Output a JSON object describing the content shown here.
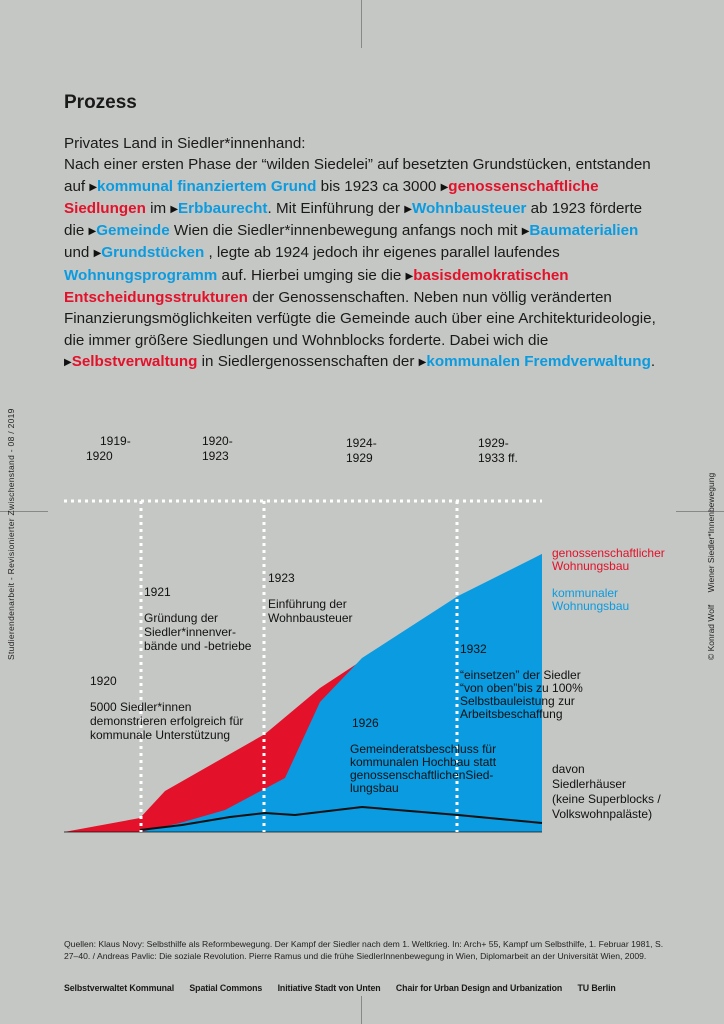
{
  "sidebar_left": "Studierendenarbeit -  Revisionierter Zwischenstand - 08 / 2019",
  "sidebar_right": {
    "credit": "© Konrad Wolf",
    "title": "Wiener Siedler*Innenbewegung"
  },
  "section_title": "Prozess",
  "text": {
    "line1": "Privates Land in Siedler*innenhand:",
    "p1": "Nach einer ersten Phase der “wilden Siedelei” auf besetzten Grundstücken, entstanden auf ",
    "kw1": "kommunal finanziertem Grund",
    "p2": " bis 1923 ca 3000 ",
    "kw2": "genossenschaftliche Siedlungen",
    "p3": " im ",
    "kw3": "Erbbaurecht",
    "p4": ". Mit Einführung der  ",
    "kw4": "Wohnbausteuer",
    "p5": " ab 1923 förderte die ",
    "kw5": "Gemeinde",
    "p6": " Wien die Siedler*innenbewegung anfangs noch mit ",
    "kw6": "Baumaterialien",
    "p7": " und ",
    "kw7": "Grundstücken",
    "p8": " , legte ab 1924 jedoch ihr eigenes parallel laufendes ",
    "kw8": "Wohnungsprogramm",
    "p9": " auf. Hierbei umging sie die ",
    "kw9": "basisdemokratischen Entscheidungsstrukturen",
    "p10": " der Genossenschaften. Neben nun völlig veränderten Finanzierungsmöglichkeiten verfügte die Gemeinde auch über eine Architekturideologie, die immer größere Siedlungen und Wohnblocks forderte. Dabei wich die ",
    "kw10": "Selbstverwaltung",
    "p11": " in Siedlergenossenschaften der ",
    "kw11": "kommunalen Fremdverwaltung",
    "p12": "."
  },
  "colors": {
    "blue": "#0a9be0",
    "red": "#e3112a",
    "background": "#c5c7c4"
  },
  "chart": {
    "periods": [
      {
        "line1": "1919-",
        "line2": "1920"
      },
      {
        "line1": "1920-",
        "line2": "1923"
      },
      {
        "line1": "1924-",
        "line2": "1929"
      },
      {
        "line1": "1929-",
        "line2": "1933 ff."
      }
    ],
    "annotations": [
      {
        "year": "1921",
        "lines": [
          "Gründung der",
          "Siedler*innenver-",
          "bände und -betriebe"
        ]
      },
      {
        "year": "1923",
        "lines": [
          "Einführung der",
          "Wohnbausteuer"
        ]
      },
      {
        "year": "1920",
        "lines": [
          "5000 Siedler*innen",
          "demonstrieren erfolgreich für",
          "kommunale Unterstützung"
        ]
      },
      {
        "year": "1926",
        "lines": [
          "Gemeinderatsbeschluss für",
          "kommunalen Hochbau statt",
          "genossenschaftlichenSied-",
          "lungsbau"
        ]
      },
      {
        "year": "1932",
        "lines": [
          "“einsetzen” der Siedler",
          "“von oben”bis zu 100%",
          "Selbstbauleistung zur",
          "Arbeitsbeschaffung"
        ]
      }
    ],
    "legend": {
      "red_lines": [
        "genossenschaftlicher",
        "Wohnungsbau"
      ],
      "blue_lines": [
        "kommunaler",
        "Wohnungsbau"
      ],
      "black_lines": [
        "davon",
        "Siedlerhäuser",
        "(keine Superblocks /",
        "Volkswohnpaläste)"
      ]
    }
  },
  "sources": {
    "line1": "Quellen: Klaus Novy: Selbsthilfe als Reformbewegung. Der Kampf der Siedler nach dem 1. Weltkrieg. In: Arch+ 55, Kampf um Selbsthilfe, 1. Februar 1981, S. 27–40. / Andreas Pavlic: Die soziale Revolution. Pierre Ramus und die frühe SiedlerInnenbewegung in Wien, Diplomarbeit an der Universität Wien, 2009."
  },
  "credits": [
    "Selbstverwaltet Kommunal",
    "Spatial Commons",
    "Initiative Stadt von Unten",
    "Chair for Urban Design and Urbanization",
    "TU Berlin"
  ]
}
